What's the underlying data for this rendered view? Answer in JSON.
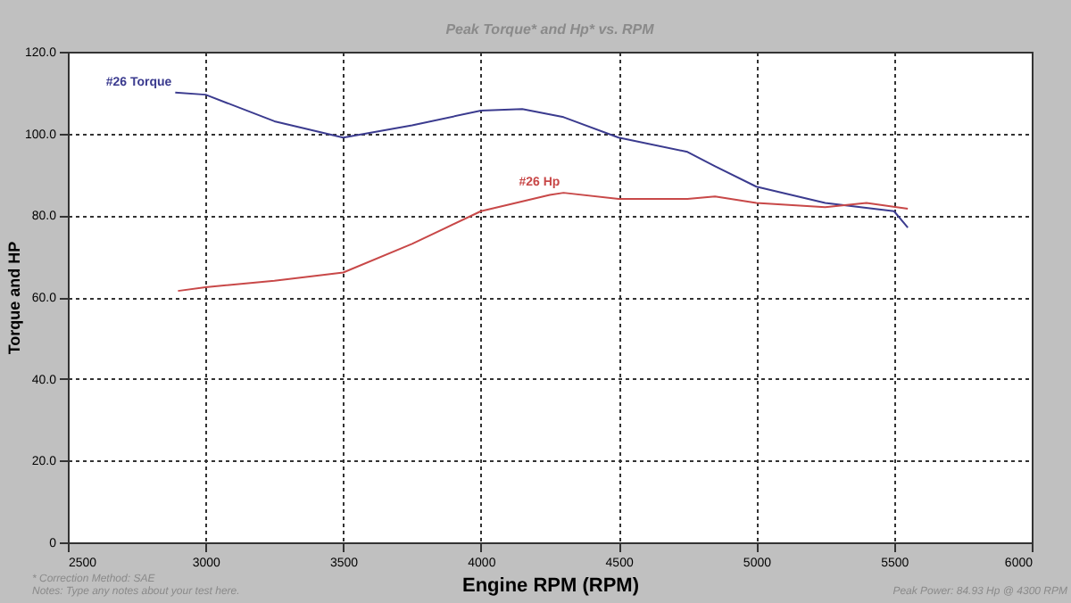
{
  "chart_data": {
    "type": "line",
    "title": "Peak Torque* and Hp* vs. RPM",
    "xlabel": "Engine RPM (RPM)",
    "ylabel": "Torque and HP",
    "xlim": [
      2500,
      6000
    ],
    "xticks": [
      2500,
      3000,
      3500,
      4000,
      4500,
      5000,
      5500,
      6000
    ],
    "ylim": [
      0,
      120
    ],
    "yticks": [
      {
        "value": 0,
        "label": "0"
      },
      {
        "value": 20,
        "label": "20.0"
      },
      {
        "value": 40,
        "label": "40.0"
      },
      {
        "value": 60,
        "label": "60.0"
      },
      {
        "value": 80,
        "label": "80.0"
      },
      {
        "value": 100,
        "label": "100.0"
      },
      {
        "value": 120,
        "label": "120.0"
      }
    ],
    "grid": true,
    "marker": "none",
    "line_style": "solid",
    "series": [
      {
        "name": "#26 Torque",
        "color": "#3b3b8f",
        "x": [
          2890,
          3000,
          3250,
          3500,
          3750,
          4000,
          4150,
          4300,
          4500,
          4750,
          4850,
          5000,
          5250,
          5500,
          5550
        ],
        "values": [
          110,
          109.5,
          103,
          99,
          102,
          105.6,
          106,
          104,
          99,
          95.5,
          92,
          87,
          83,
          81,
          77
        ]
      },
      {
        "name": "#26 Hp",
        "color": "#c84848",
        "x": [
          2900,
          3000,
          3250,
          3500,
          3750,
          4000,
          4250,
          4300,
          4500,
          4750,
          4850,
          5000,
          5250,
          5400,
          5550
        ],
        "values": [
          61.5,
          62.4,
          64,
          66,
          73,
          81,
          85,
          85.5,
          84,
          84,
          84.6,
          83,
          82,
          83,
          81.6
        ]
      }
    ],
    "annotations": [
      "* Correction Method: SAE",
      "Notes: Type any notes about your test here.",
      "Peak Power: 84.93 Hp @ 4300 RPM"
    ]
  }
}
